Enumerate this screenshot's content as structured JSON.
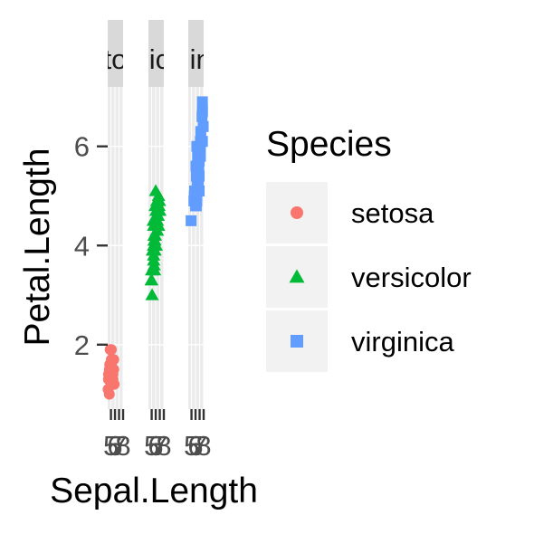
{
  "chart_data": {
    "type": "scatter",
    "facet_by": "Species",
    "facets": [
      "setosa",
      "versicolor",
      "virginica"
    ],
    "strip_labels": [
      "setosa",
      "versicolor",
      "virginica"
    ],
    "xlabel": "Sepal.Length",
    "ylabel": "Petal.Length",
    "x_ticks": [
      5,
      6,
      7,
      8
    ],
    "y_ticks": [
      2,
      4,
      6
    ],
    "xlim": [
      4.2,
      8.0
    ],
    "ylim": [
      0.7,
      7.2
    ],
    "grid": true,
    "legend": {
      "title": "Species",
      "placement": "right",
      "entries": [
        {
          "label": "setosa",
          "color": "#F8766D",
          "shape": "circle"
        },
        {
          "label": "versicolor",
          "color": "#00BA38",
          "shape": "triangle"
        },
        {
          "label": "virginica",
          "color": "#619CFF",
          "shape": "square"
        }
      ]
    },
    "series": [
      {
        "name": "setosa",
        "color": "#F8766D",
        "shape": "circle",
        "points": [
          {
            "x": 5.1,
            "y": 1.4
          },
          {
            "x": 4.9,
            "y": 1.4
          },
          {
            "x": 4.7,
            "y": 1.3
          },
          {
            "x": 4.6,
            "y": 1.5
          },
          {
            "x": 5.0,
            "y": 1.4
          },
          {
            "x": 5.4,
            "y": 1.7
          },
          {
            "x": 4.6,
            "y": 1.4
          },
          {
            "x": 5.0,
            "y": 1.5
          },
          {
            "x": 4.4,
            "y": 1.4
          },
          {
            "x": 4.9,
            "y": 1.5
          },
          {
            "x": 5.4,
            "y": 1.5
          },
          {
            "x": 4.8,
            "y": 1.6
          },
          {
            "x": 4.8,
            "y": 1.4
          },
          {
            "x": 4.3,
            "y": 1.1
          },
          {
            "x": 5.8,
            "y": 1.2
          },
          {
            "x": 5.7,
            "y": 1.5
          },
          {
            "x": 5.4,
            "y": 1.3
          },
          {
            "x": 5.1,
            "y": 1.4
          },
          {
            "x": 5.7,
            "y": 1.7
          },
          {
            "x": 5.1,
            "y": 1.5
          },
          {
            "x": 5.4,
            "y": 1.7
          },
          {
            "x": 5.1,
            "y": 1.5
          },
          {
            "x": 4.6,
            "y": 1.0
          },
          {
            "x": 5.1,
            "y": 1.7
          },
          {
            "x": 4.8,
            "y": 1.9
          },
          {
            "x": 5.0,
            "y": 1.6
          },
          {
            "x": 5.0,
            "y": 1.6
          },
          {
            "x": 5.2,
            "y": 1.5
          },
          {
            "x": 5.2,
            "y": 1.4
          },
          {
            "x": 4.7,
            "y": 1.6
          },
          {
            "x": 4.8,
            "y": 1.6
          },
          {
            "x": 5.4,
            "y": 1.5
          },
          {
            "x": 5.2,
            "y": 1.5
          },
          {
            "x": 5.5,
            "y": 1.4
          },
          {
            "x": 4.9,
            "y": 1.5
          },
          {
            "x": 5.0,
            "y": 1.2
          },
          {
            "x": 5.5,
            "y": 1.3
          },
          {
            "x": 4.9,
            "y": 1.4
          },
          {
            "x": 4.4,
            "y": 1.3
          },
          {
            "x": 5.1,
            "y": 1.5
          },
          {
            "x": 5.0,
            "y": 1.3
          },
          {
            "x": 4.5,
            "y": 1.3
          },
          {
            "x": 4.4,
            "y": 1.3
          },
          {
            "x": 5.0,
            "y": 1.6
          },
          {
            "x": 5.1,
            "y": 1.9
          },
          {
            "x": 4.8,
            "y": 1.4
          },
          {
            "x": 5.1,
            "y": 1.6
          },
          {
            "x": 4.6,
            "y": 1.4
          },
          {
            "x": 5.3,
            "y": 1.5
          },
          {
            "x": 5.0,
            "y": 1.4
          }
        ]
      },
      {
        "name": "versicolor",
        "color": "#00BA38",
        "shape": "triangle",
        "points": [
          {
            "x": 7.0,
            "y": 4.7
          },
          {
            "x": 6.4,
            "y": 4.5
          },
          {
            "x": 6.9,
            "y": 4.9
          },
          {
            "x": 5.5,
            "y": 4.0
          },
          {
            "x": 6.5,
            "y": 4.6
          },
          {
            "x": 5.7,
            "y": 4.5
          },
          {
            "x": 6.3,
            "y": 4.7
          },
          {
            "x": 4.9,
            "y": 3.3
          },
          {
            "x": 6.6,
            "y": 4.6
          },
          {
            "x": 5.2,
            "y": 3.9
          },
          {
            "x": 5.0,
            "y": 3.5
          },
          {
            "x": 5.9,
            "y": 4.2
          },
          {
            "x": 6.0,
            "y": 4.0
          },
          {
            "x": 6.1,
            "y": 4.7
          },
          {
            "x": 5.6,
            "y": 3.6
          },
          {
            "x": 6.7,
            "y": 4.4
          },
          {
            "x": 5.6,
            "y": 4.5
          },
          {
            "x": 5.8,
            "y": 4.1
          },
          {
            "x": 6.2,
            "y": 4.5
          },
          {
            "x": 5.6,
            "y": 3.9
          },
          {
            "x": 5.9,
            "y": 4.8
          },
          {
            "x": 6.1,
            "y": 4.0
          },
          {
            "x": 6.3,
            "y": 4.9
          },
          {
            "x": 6.1,
            "y": 4.7
          },
          {
            "x": 6.4,
            "y": 4.3
          },
          {
            "x": 6.6,
            "y": 4.4
          },
          {
            "x": 6.8,
            "y": 4.8
          },
          {
            "x": 6.7,
            "y": 5.0
          },
          {
            "x": 6.0,
            "y": 4.5
          },
          {
            "x": 5.7,
            "y": 3.5
          },
          {
            "x": 5.5,
            "y": 3.8
          },
          {
            "x": 5.5,
            "y": 3.7
          },
          {
            "x": 5.8,
            "y": 3.9
          },
          {
            "x": 6.0,
            "y": 5.1
          },
          {
            "x": 5.4,
            "y": 4.5
          },
          {
            "x": 6.0,
            "y": 4.5
          },
          {
            "x": 6.7,
            "y": 4.7
          },
          {
            "x": 6.3,
            "y": 4.4
          },
          {
            "x": 5.6,
            "y": 4.1
          },
          {
            "x": 5.5,
            "y": 4.0
          },
          {
            "x": 5.5,
            "y": 4.4
          },
          {
            "x": 6.1,
            "y": 4.6
          },
          {
            "x": 5.8,
            "y": 4.0
          },
          {
            "x": 5.0,
            "y": 3.3
          },
          {
            "x": 5.6,
            "y": 4.2
          },
          {
            "x": 5.7,
            "y": 4.2
          },
          {
            "x": 5.7,
            "y": 4.2
          },
          {
            "x": 6.2,
            "y": 4.3
          },
          {
            "x": 5.1,
            "y": 3.0
          },
          {
            "x": 5.7,
            "y": 4.1
          }
        ]
      },
      {
        "name": "virginica",
        "color": "#619CFF",
        "shape": "square",
        "points": [
          {
            "x": 6.3,
            "y": 6.0
          },
          {
            "x": 5.8,
            "y": 5.1
          },
          {
            "x": 7.1,
            "y": 5.9
          },
          {
            "x": 6.3,
            "y": 5.6
          },
          {
            "x": 6.5,
            "y": 5.8
          },
          {
            "x": 7.6,
            "y": 6.6
          },
          {
            "x": 4.9,
            "y": 4.5
          },
          {
            "x": 7.3,
            "y": 6.3
          },
          {
            "x": 6.7,
            "y": 5.8
          },
          {
            "x": 7.2,
            "y": 6.1
          },
          {
            "x": 6.5,
            "y": 5.1
          },
          {
            "x": 6.4,
            "y": 5.3
          },
          {
            "x": 6.8,
            "y": 5.5
          },
          {
            "x": 5.7,
            "y": 5.0
          },
          {
            "x": 5.8,
            "y": 5.1
          },
          {
            "x": 6.4,
            "y": 5.3
          },
          {
            "x": 6.5,
            "y": 5.5
          },
          {
            "x": 7.7,
            "y": 6.7
          },
          {
            "x": 7.7,
            "y": 6.9
          },
          {
            "x": 6.0,
            "y": 5.0
          },
          {
            "x": 6.9,
            "y": 5.7
          },
          {
            "x": 5.6,
            "y": 4.9
          },
          {
            "x": 7.7,
            "y": 6.7
          },
          {
            "x": 6.3,
            "y": 4.9
          },
          {
            "x": 6.7,
            "y": 5.7
          },
          {
            "x": 7.2,
            "y": 6.0
          },
          {
            "x": 6.2,
            "y": 4.8
          },
          {
            "x": 6.1,
            "y": 4.9
          },
          {
            "x": 6.4,
            "y": 5.6
          },
          {
            "x": 7.2,
            "y": 5.8
          },
          {
            "x": 7.4,
            "y": 6.1
          },
          {
            "x": 7.9,
            "y": 6.4
          },
          {
            "x": 6.4,
            "y": 5.6
          },
          {
            "x": 6.3,
            "y": 5.1
          },
          {
            "x": 6.1,
            "y": 5.6
          },
          {
            "x": 7.7,
            "y": 6.1
          },
          {
            "x": 6.3,
            "y": 5.6
          },
          {
            "x": 6.4,
            "y": 5.5
          },
          {
            "x": 6.0,
            "y": 4.8
          },
          {
            "x": 6.9,
            "y": 5.4
          },
          {
            "x": 6.7,
            "y": 5.6
          },
          {
            "x": 6.9,
            "y": 5.1
          },
          {
            "x": 5.8,
            "y": 5.1
          },
          {
            "x": 6.8,
            "y": 5.9
          },
          {
            "x": 6.7,
            "y": 5.7
          },
          {
            "x": 6.7,
            "y": 5.2
          },
          {
            "x": 6.3,
            "y": 5.0
          },
          {
            "x": 6.5,
            "y": 5.2
          },
          {
            "x": 6.2,
            "y": 5.4
          },
          {
            "x": 5.9,
            "y": 5.1
          }
        ]
      }
    ]
  }
}
